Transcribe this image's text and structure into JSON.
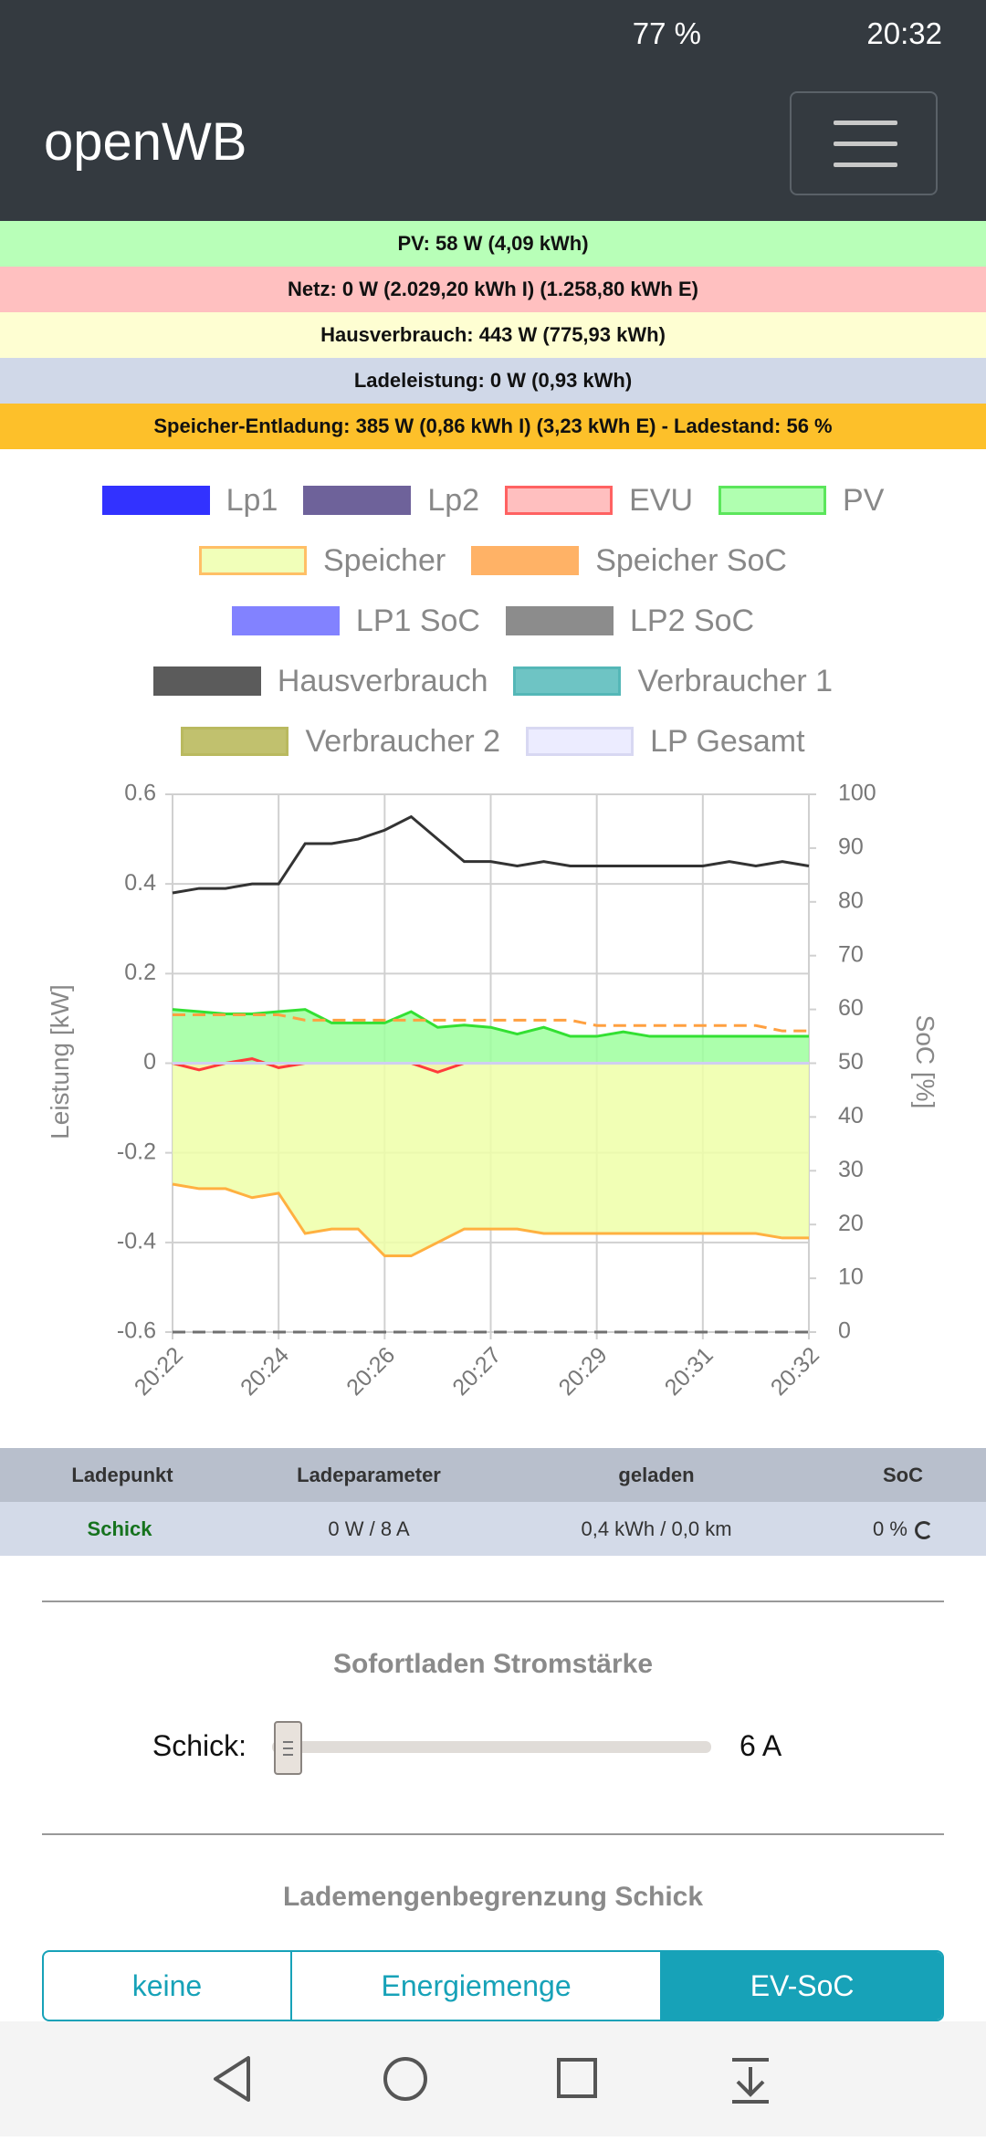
{
  "status_bar": {
    "battery": "77 %",
    "time": "20:32"
  },
  "header": {
    "title": "openWB"
  },
  "info_bars": [
    "PV: 58 W (4,09 kWh)",
    "Netz: 0 W (2.029,20 kWh I) (1.258,80 kWh E)",
    "Hausverbrauch: 443 W (775,93 kWh)",
    "Ladeleistung: 0 W (0,93 kWh)",
    "Speicher-Entladung: 385 W (0,86 kWh I) (3,23 kWh E) - Ladestand: 56 %"
  ],
  "chart_data": {
    "type": "line",
    "categories": [
      "20:22",
      null,
      null,
      null,
      "20:24",
      null,
      null,
      null,
      "20:26",
      null,
      null,
      null,
      "20:27",
      null,
      null,
      null,
      "20:29",
      null,
      null,
      null,
      "20:31",
      null,
      null,
      null,
      "20:32"
    ],
    "ylabel": "Leistung [kW]",
    "y2label": "SoC [%]",
    "ylim": [
      -0.6,
      0.6
    ],
    "yticks": [
      -0.6,
      -0.4,
      -0.2,
      0,
      0.2,
      0.4,
      0.6
    ],
    "y2lim": [
      0,
      100
    ],
    "y2ticks": [
      0,
      10,
      20,
      30,
      40,
      50,
      60,
      70,
      80,
      90,
      100
    ],
    "grid": true,
    "series": [
      {
        "name": "Lp1",
        "color": "#0000ff",
        "values": [
          0,
          0,
          0,
          0,
          0,
          0,
          0,
          0,
          0,
          0,
          0,
          0,
          0,
          0,
          0,
          0,
          0,
          0,
          0,
          0,
          0,
          0,
          0,
          0,
          0
        ]
      },
      {
        "name": "Lp2",
        "color": "#4b3c82",
        "values": [
          0,
          0,
          0,
          0,
          0,
          0,
          0,
          0,
          0,
          0,
          0,
          0,
          0,
          0,
          0,
          0,
          0,
          0,
          0,
          0,
          0,
          0,
          0,
          0,
          0
        ]
      },
      {
        "name": "EVU",
        "color": "#ff3b3b",
        "fill": "#ffb0b0",
        "values": [
          0,
          -0.015,
          0,
          0.01,
          -0.01,
          0,
          0,
          0,
          0,
          0,
          -0.02,
          0,
          0,
          0,
          0,
          0,
          0,
          0,
          0,
          0,
          0,
          0,
          0,
          0,
          0
        ]
      },
      {
        "name": "PV",
        "color": "#33e033",
        "fill": "#9dff9d",
        "values": [
          0.12,
          0.115,
          0.11,
          0.11,
          0.115,
          0.12,
          0.09,
          0.09,
          0.09,
          0.115,
          0.08,
          0.085,
          0.08,
          0.065,
          0.08,
          0.06,
          0.06,
          0.07,
          0.06,
          0.06,
          0.06,
          0.06,
          0.06,
          0.06,
          0.06
        ]
      },
      {
        "name": "Speicher",
        "color": "#ffb040",
        "fill": "#eeffa8",
        "values": [
          -0.27,
          -0.28,
          -0.28,
          -0.3,
          -0.29,
          -0.38,
          -0.37,
          -0.37,
          -0.43,
          -0.43,
          -0.4,
          -0.37,
          -0.37,
          -0.37,
          -0.38,
          -0.38,
          -0.38,
          -0.38,
          -0.38,
          -0.38,
          -0.38,
          -0.38,
          -0.38,
          -0.39,
          -0.39
        ]
      },
      {
        "name": "Speicher SoC",
        "color": "#ffa040",
        "dash": true,
        "axis": "y2",
        "values": [
          59,
          59,
          59,
          59,
          59,
          58,
          58,
          58,
          58,
          58,
          58,
          58,
          58,
          58,
          58,
          58,
          57,
          57,
          57,
          57,
          57,
          57,
          57,
          56,
          56
        ]
      },
      {
        "name": "LP1 SoC",
        "color": "#6464ff",
        "dash": true,
        "axis": "y2",
        "values": [
          0,
          0,
          0,
          0,
          0,
          0,
          0,
          0,
          0,
          0,
          0,
          0,
          0,
          0,
          0,
          0,
          0,
          0,
          0,
          0,
          0,
          0,
          0,
          0,
          0
        ]
      },
      {
        "name": "LP2 SoC",
        "color": "#707070",
        "dash": true,
        "axis": "y2",
        "values": [
          0,
          0,
          0,
          0,
          0,
          0,
          0,
          0,
          0,
          0,
          0,
          0,
          0,
          0,
          0,
          0,
          0,
          0,
          0,
          0,
          0,
          0,
          0,
          0,
          0
        ]
      },
      {
        "name": "Hausverbrauch",
        "color": "#333333",
        "values": [
          0.38,
          0.39,
          0.39,
          0.4,
          0.4,
          0.49,
          0.49,
          0.5,
          0.52,
          0.55,
          0.5,
          0.45,
          0.45,
          0.44,
          0.45,
          0.44,
          0.44,
          0.44,
          0.44,
          0.44,
          0.44,
          0.45,
          0.44,
          0.45,
          0.44
        ]
      },
      {
        "name": "Verbraucher 1",
        "color": "#2aa6a6",
        "fill": "#4ab6b6",
        "values": [
          0,
          0,
          0,
          0,
          0,
          0,
          0,
          0,
          0,
          0,
          0,
          0,
          0,
          0,
          0,
          0,
          0,
          0,
          0,
          0,
          0,
          0,
          0,
          0,
          0
        ]
      },
      {
        "name": "Verbraucher 2",
        "color": "#a8a838",
        "fill": "#b2b24a",
        "values": [
          0,
          0,
          0,
          0,
          0,
          0,
          0,
          0,
          0,
          0,
          0,
          0,
          0,
          0,
          0,
          0,
          0,
          0,
          0,
          0,
          0,
          0,
          0,
          0,
          0
        ]
      },
      {
        "name": "LP Gesamt",
        "color": "#cfcff0",
        "fill": "#e8e8ff",
        "values": [
          0,
          0,
          0,
          0,
          0,
          0,
          0,
          0,
          0,
          0,
          0,
          0,
          0,
          0,
          0,
          0,
          0,
          0,
          0,
          0,
          0,
          0,
          0,
          0,
          0
        ]
      }
    ]
  },
  "table": {
    "header": [
      "Ladepunkt",
      "Ladeparameter",
      "geladen",
      "SoC"
    ],
    "rows": [
      [
        "Schick",
        "0 W / 8 A",
        "0,4 kWh / 0,0 km",
        "0 %"
      ]
    ]
  },
  "sofortladen": {
    "title": "Sofortladen Stromstärke",
    "label": "Schick:",
    "value": "6 A"
  },
  "lademengen": {
    "title": "Lademengenbegrenzung Schick",
    "options": [
      "keine",
      "Energiemenge",
      "EV-SoC"
    ],
    "active": 2
  }
}
